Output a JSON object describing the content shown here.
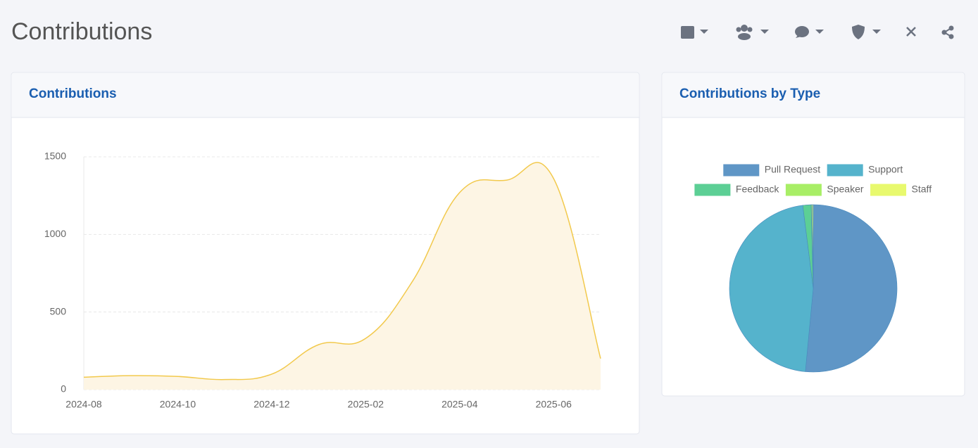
{
  "header": {
    "title": "Contributions"
  },
  "chart_data": [
    {
      "type": "line",
      "title": "Contributions",
      "x": [
        "2024-08",
        "2024-09",
        "2024-10",
        "2024-11",
        "2024-12",
        "2025-01",
        "2025-02",
        "2025-03",
        "2025-04",
        "2025-05",
        "2025-06",
        "2025-07"
      ],
      "values": [
        80,
        90,
        85,
        65,
        100,
        290,
        330,
        700,
        1270,
        1350,
        1360,
        200
      ],
      "color": "#f2c94c",
      "fill_color": "#fdf5e4",
      "xticks": [
        "2024-08",
        "2024-10",
        "2024-12",
        "2025-02",
        "2025-04",
        "2025-06"
      ],
      "ylim": [
        0,
        1500
      ],
      "yticks": [
        0,
        500,
        1000,
        1500
      ],
      "grid": true
    },
    {
      "type": "pie",
      "title": "Contributions by Type",
      "categories": [
        "Pull Request",
        "Support",
        "Feedback",
        "Speaker",
        "Staff"
      ],
      "values": [
        51.5,
        46.5,
        1.6,
        0.2,
        0.2
      ],
      "colors": [
        "#5f96c6",
        "#55b3cc",
        "#5ccf95",
        "#a8ee66",
        "#e8f96e"
      ]
    }
  ]
}
